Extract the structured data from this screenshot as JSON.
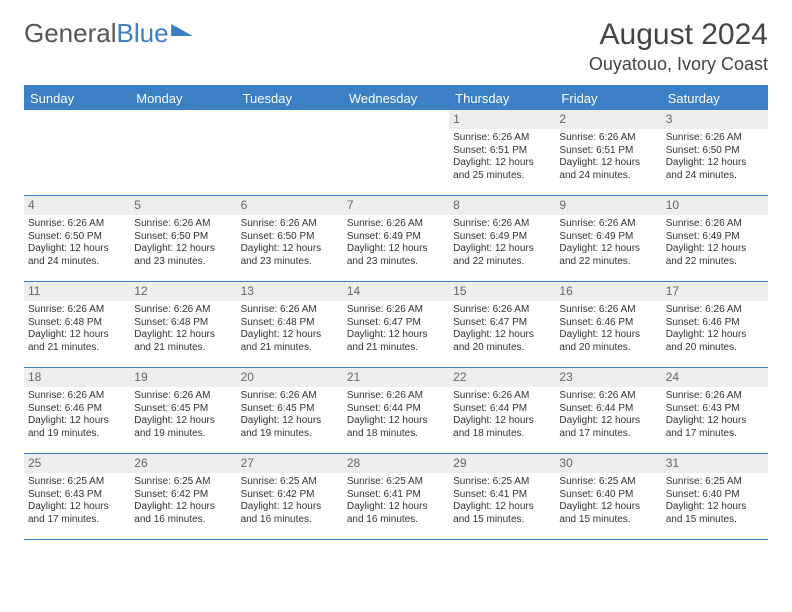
{
  "logo": {
    "part1": "General",
    "part2": "Blue"
  },
  "header": {
    "month_title": "August 2024",
    "location": "Ouyatouo, Ivory Coast"
  },
  "colors": {
    "accent": "#3b7fc4",
    "header_bg": "#3b7fc4",
    "daynum_bg": "#eeeeee",
    "text": "#333333",
    "background": "#ffffff"
  },
  "calendar": {
    "type": "table",
    "day_headers": [
      "Sunday",
      "Monday",
      "Tuesday",
      "Wednesday",
      "Thursday",
      "Friday",
      "Saturday"
    ],
    "first_weekday_index": 4,
    "days": [
      {
        "n": "1",
        "sunrise": "Sunrise: 6:26 AM",
        "sunset": "Sunset: 6:51 PM",
        "daylight": "Daylight: 12 hours and 25 minutes."
      },
      {
        "n": "2",
        "sunrise": "Sunrise: 6:26 AM",
        "sunset": "Sunset: 6:51 PM",
        "daylight": "Daylight: 12 hours and 24 minutes."
      },
      {
        "n": "3",
        "sunrise": "Sunrise: 6:26 AM",
        "sunset": "Sunset: 6:50 PM",
        "daylight": "Daylight: 12 hours and 24 minutes."
      },
      {
        "n": "4",
        "sunrise": "Sunrise: 6:26 AM",
        "sunset": "Sunset: 6:50 PM",
        "daylight": "Daylight: 12 hours and 24 minutes."
      },
      {
        "n": "5",
        "sunrise": "Sunrise: 6:26 AM",
        "sunset": "Sunset: 6:50 PM",
        "daylight": "Daylight: 12 hours and 23 minutes."
      },
      {
        "n": "6",
        "sunrise": "Sunrise: 6:26 AM",
        "sunset": "Sunset: 6:50 PM",
        "daylight": "Daylight: 12 hours and 23 minutes."
      },
      {
        "n": "7",
        "sunrise": "Sunrise: 6:26 AM",
        "sunset": "Sunset: 6:49 PM",
        "daylight": "Daylight: 12 hours and 23 minutes."
      },
      {
        "n": "8",
        "sunrise": "Sunrise: 6:26 AM",
        "sunset": "Sunset: 6:49 PM",
        "daylight": "Daylight: 12 hours and 22 minutes."
      },
      {
        "n": "9",
        "sunrise": "Sunrise: 6:26 AM",
        "sunset": "Sunset: 6:49 PM",
        "daylight": "Daylight: 12 hours and 22 minutes."
      },
      {
        "n": "10",
        "sunrise": "Sunrise: 6:26 AM",
        "sunset": "Sunset: 6:49 PM",
        "daylight": "Daylight: 12 hours and 22 minutes."
      },
      {
        "n": "11",
        "sunrise": "Sunrise: 6:26 AM",
        "sunset": "Sunset: 6:48 PM",
        "daylight": "Daylight: 12 hours and 21 minutes."
      },
      {
        "n": "12",
        "sunrise": "Sunrise: 6:26 AM",
        "sunset": "Sunset: 6:48 PM",
        "daylight": "Daylight: 12 hours and 21 minutes."
      },
      {
        "n": "13",
        "sunrise": "Sunrise: 6:26 AM",
        "sunset": "Sunset: 6:48 PM",
        "daylight": "Daylight: 12 hours and 21 minutes."
      },
      {
        "n": "14",
        "sunrise": "Sunrise: 6:26 AM",
        "sunset": "Sunset: 6:47 PM",
        "daylight": "Daylight: 12 hours and 21 minutes."
      },
      {
        "n": "15",
        "sunrise": "Sunrise: 6:26 AM",
        "sunset": "Sunset: 6:47 PM",
        "daylight": "Daylight: 12 hours and 20 minutes."
      },
      {
        "n": "16",
        "sunrise": "Sunrise: 6:26 AM",
        "sunset": "Sunset: 6:46 PM",
        "daylight": "Daylight: 12 hours and 20 minutes."
      },
      {
        "n": "17",
        "sunrise": "Sunrise: 6:26 AM",
        "sunset": "Sunset: 6:46 PM",
        "daylight": "Daylight: 12 hours and 20 minutes."
      },
      {
        "n": "18",
        "sunrise": "Sunrise: 6:26 AM",
        "sunset": "Sunset: 6:46 PM",
        "daylight": "Daylight: 12 hours and 19 minutes."
      },
      {
        "n": "19",
        "sunrise": "Sunrise: 6:26 AM",
        "sunset": "Sunset: 6:45 PM",
        "daylight": "Daylight: 12 hours and 19 minutes."
      },
      {
        "n": "20",
        "sunrise": "Sunrise: 6:26 AM",
        "sunset": "Sunset: 6:45 PM",
        "daylight": "Daylight: 12 hours and 19 minutes."
      },
      {
        "n": "21",
        "sunrise": "Sunrise: 6:26 AM",
        "sunset": "Sunset: 6:44 PM",
        "daylight": "Daylight: 12 hours and 18 minutes."
      },
      {
        "n": "22",
        "sunrise": "Sunrise: 6:26 AM",
        "sunset": "Sunset: 6:44 PM",
        "daylight": "Daylight: 12 hours and 18 minutes."
      },
      {
        "n": "23",
        "sunrise": "Sunrise: 6:26 AM",
        "sunset": "Sunset: 6:44 PM",
        "daylight": "Daylight: 12 hours and 17 minutes."
      },
      {
        "n": "24",
        "sunrise": "Sunrise: 6:26 AM",
        "sunset": "Sunset: 6:43 PM",
        "daylight": "Daylight: 12 hours and 17 minutes."
      },
      {
        "n": "25",
        "sunrise": "Sunrise: 6:25 AM",
        "sunset": "Sunset: 6:43 PM",
        "daylight": "Daylight: 12 hours and 17 minutes."
      },
      {
        "n": "26",
        "sunrise": "Sunrise: 6:25 AM",
        "sunset": "Sunset: 6:42 PM",
        "daylight": "Daylight: 12 hours and 16 minutes."
      },
      {
        "n": "27",
        "sunrise": "Sunrise: 6:25 AM",
        "sunset": "Sunset: 6:42 PM",
        "daylight": "Daylight: 12 hours and 16 minutes."
      },
      {
        "n": "28",
        "sunrise": "Sunrise: 6:25 AM",
        "sunset": "Sunset: 6:41 PM",
        "daylight": "Daylight: 12 hours and 16 minutes."
      },
      {
        "n": "29",
        "sunrise": "Sunrise: 6:25 AM",
        "sunset": "Sunset: 6:41 PM",
        "daylight": "Daylight: 12 hours and 15 minutes."
      },
      {
        "n": "30",
        "sunrise": "Sunrise: 6:25 AM",
        "sunset": "Sunset: 6:40 PM",
        "daylight": "Daylight: 12 hours and 15 minutes."
      },
      {
        "n": "31",
        "sunrise": "Sunrise: 6:25 AM",
        "sunset": "Sunset: 6:40 PM",
        "daylight": "Daylight: 12 hours and 15 minutes."
      }
    ]
  }
}
